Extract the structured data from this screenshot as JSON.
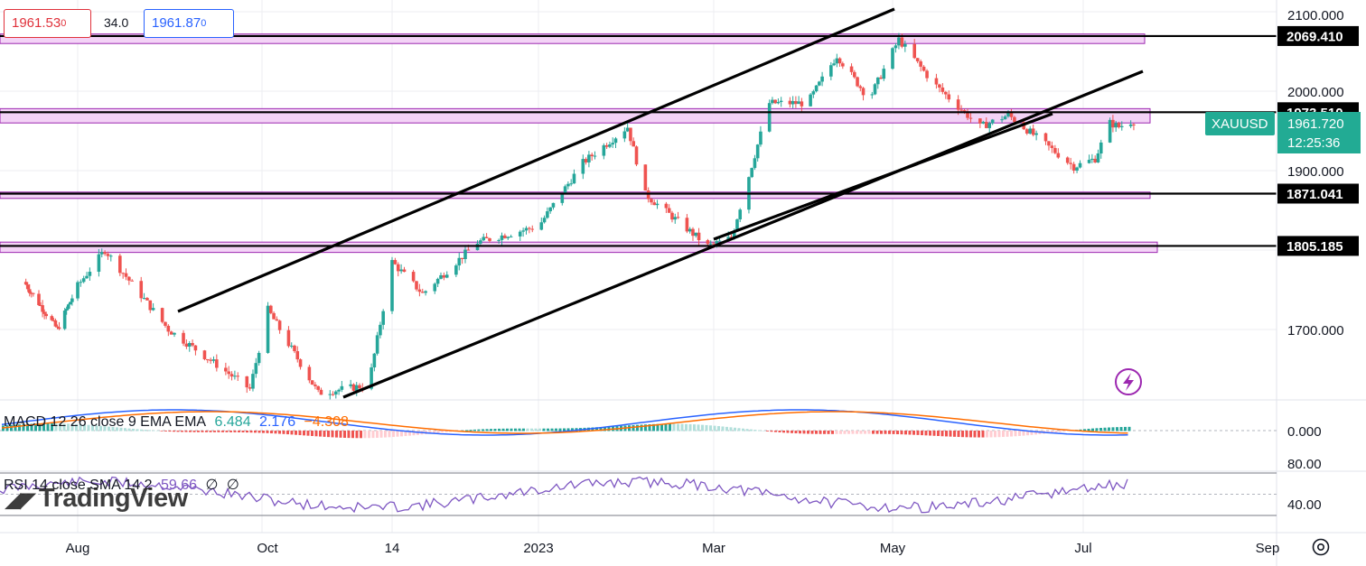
{
  "quote": {
    "bid": "1961.53",
    "bid_small": "0",
    "spread": "34.0",
    "ask": "1961.87",
    "ask_small": "0"
  },
  "price_axis": {
    "ticks": [
      "2100.000",
      "1900.000",
      "1700.000"
    ],
    "hidden_tick": "2000.000"
  },
  "levels": [
    {
      "label": "2069.410",
      "value": 2069.41
    },
    {
      "label": "1973.510",
      "value": 1973.51
    },
    {
      "label": "1871.041",
      "value": 1871.041
    },
    {
      "label": "1805.185",
      "value": 1805.185
    }
  ],
  "symbol": {
    "name": "XAUUSD",
    "price": "1961.720",
    "countdown": "12:25:36"
  },
  "x_axis": {
    "ticks": [
      "Aug",
      "Oct",
      "14",
      "2023",
      "Mar",
      "May",
      "Jul",
      "Sep"
    ]
  },
  "macd": {
    "title": "MACD 12 26 close 9 EMA EMA",
    "hist": "6.484",
    "macd": "2.176",
    "signal": "−4.308",
    "axis_tick": "0.000"
  },
  "rsi": {
    "title": "RSI 14 close SMA 14 2",
    "value": "59.66",
    "ma1": "∅",
    "ma2": "∅",
    "axis_ticks": [
      "80.00",
      "40.00"
    ]
  },
  "watermark": "TradingView",
  "colors": {
    "up": "#26a69a",
    "down": "#ef5350",
    "zone_fill": "#f3d3f6",
    "zone_border": "#9c27b0",
    "macd_line": "#2962ff",
    "signal_line": "#ff6d00",
    "rsi_line": "#7e57c2",
    "axis_label": "#000000",
    "symbol_badge": "#22ab94"
  },
  "icons": {
    "lightning": "lightning-icon",
    "settings": "gear-icon"
  },
  "chart_data": {
    "type": "candlestick",
    "symbol": "XAUUSD",
    "y_range": [
      1640,
      2110
    ],
    "horizontal_levels": [
      2069.41,
      1973.51,
      1871.041,
      1805.185
    ],
    "support_resistance_zones": [
      [
        2060,
        2072
      ],
      [
        1960,
        1978
      ],
      [
        1865,
        1873
      ],
      [
        1797,
        1810
      ]
    ],
    "last_price": 1961.72,
    "swing_points": [
      {
        "date": "2022-07-04",
        "price": 1760
      },
      {
        "date": "2022-07-22",
        "price": 1700
      },
      {
        "date": "2022-08-11",
        "price": 1800
      },
      {
        "date": "2022-09-01",
        "price": 1700
      },
      {
        "date": "2022-09-28",
        "price": 1625
      },
      {
        "date": "2022-10-04",
        "price": 1725
      },
      {
        "date": "2022-10-21",
        "price": 1620
      },
      {
        "date": "2022-11-07",
        "price": 1630
      },
      {
        "date": "2022-11-15",
        "price": 1785
      },
      {
        "date": "2022-11-25",
        "price": 1745
      },
      {
        "date": "2022-12-13",
        "price": 1810
      },
      {
        "date": "2023-01-02",
        "price": 1830
      },
      {
        "date": "2023-01-17",
        "price": 1910
      },
      {
        "date": "2023-02-01",
        "price": 1955
      },
      {
        "date": "2023-02-07",
        "price": 1870
      },
      {
        "date": "2023-02-28",
        "price": 1805
      },
      {
        "date": "2023-03-08",
        "price": 1815
      },
      {
        "date": "2023-03-21",
        "price": 1985
      },
      {
        "date": "2023-04-03",
        "price": 1985
      },
      {
        "date": "2023-04-13",
        "price": 2045
      },
      {
        "date": "2023-04-24",
        "price": 1990
      },
      {
        "date": "2023-05-04",
        "price": 2065
      },
      {
        "date": "2023-05-15",
        "price": 2010
      },
      {
        "date": "2023-05-30",
        "price": 1955
      },
      {
        "date": "2023-06-08",
        "price": 1970
      },
      {
        "date": "2023-06-29",
        "price": 1905
      },
      {
        "date": "2023-07-06",
        "price": 1915
      },
      {
        "date": "2023-07-11",
        "price": 1960
      },
      {
        "date": "2023-07-14",
        "price": 1955
      },
      {
        "date": "2023-07-18",
        "price": 1961.72
      }
    ],
    "macd": {
      "hist": 6.484,
      "macd": 2.176,
      "signal": -4.308
    },
    "rsi": {
      "value": 59.66,
      "levels": [
        70,
        30
      ]
    }
  }
}
